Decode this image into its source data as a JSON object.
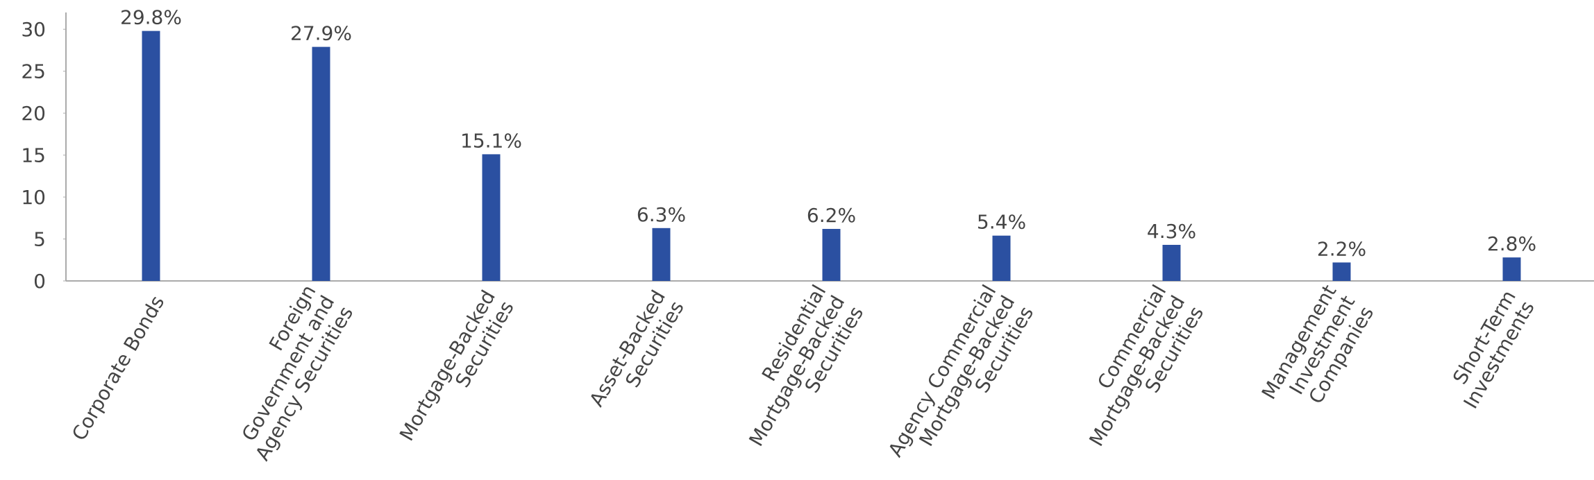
{
  "chart_data": {
    "type": "bar",
    "categories": [
      "Corporate Bonds",
      "Foreign\nGovernment and\nAgency Securities",
      "Mortgage-Backed\nSecurities",
      "Asset-Backed\nSecurities",
      "Residential\nMortgage-Backed\nSecurities",
      "Agency Commercial\nMortgage-Backed\nSecurities",
      "Commercial\nMortgage-Backed\nSecurities",
      "Management\nInvestment\nCompanies",
      "Short-Term\nInvestments"
    ],
    "values": [
      29.8,
      27.9,
      15.1,
      6.3,
      6.2,
      5.4,
      4.3,
      2.2,
      2.8
    ],
    "value_labels": [
      "29.8%",
      "27.9%",
      "15.1%",
      "6.3%",
      "6.2%",
      "5.4%",
      "4.3%",
      "2.2%",
      "2.8%"
    ],
    "color": "#2b50a1",
    "ylim": [
      0,
      32
    ],
    "yticks": [
      0,
      5,
      10,
      15,
      20,
      25,
      30
    ],
    "grid": false
  }
}
